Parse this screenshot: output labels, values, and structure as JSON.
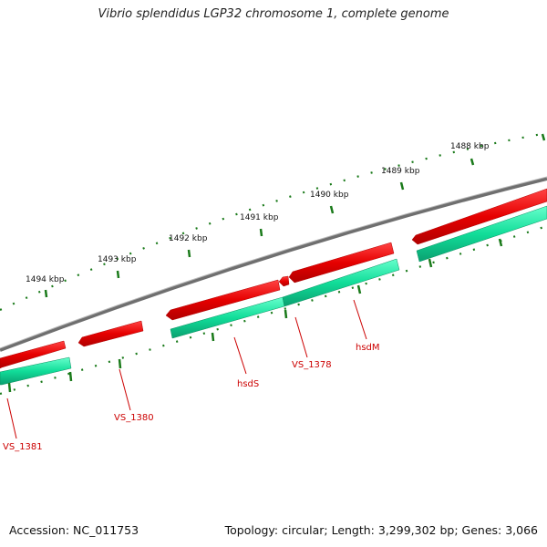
{
  "title": "Vibrio splendidus LGP32 chromosome 1, complete genome",
  "footer": {
    "accession": "Accession: NC_011753",
    "topology": "Topology: circular; Length: 3,299,302 bp; Genes: 3,066"
  },
  "colors": {
    "backbone": "#777777",
    "forward_gene": "#e80000",
    "reverse_gene": "#11dd99",
    "tick": "#1a7a1a",
    "label": "#cc0000"
  },
  "kbp_labels": [
    "1488 kbp",
    "1489 kbp",
    "1490 kbp",
    "1491 kbp",
    "1492 kbp",
    "1493 kbp",
    "1494 kbp"
  ],
  "gene_labels": [
    "VS_1381",
    "VS_1380",
    "hsdS",
    "VS_1378",
    "hsdM"
  ]
}
